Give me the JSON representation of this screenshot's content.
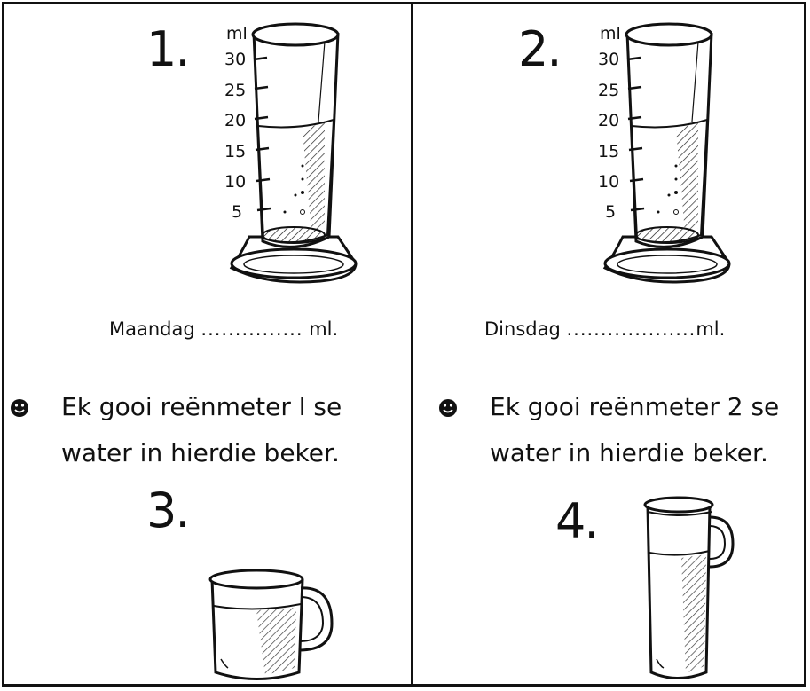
{
  "panels": [
    {
      "number": "1.",
      "unit_label": "ml",
      "scale_ticks": [
        "30",
        "25",
        "20",
        "15",
        "10",
        "5"
      ],
      "fill_prefix": "Maandag",
      "fill_dots": "...............",
      "fill_suffix": "ml.",
      "fill_level_ml": 20
    },
    {
      "number": "2.",
      "unit_label": "ml",
      "scale_ticks": [
        "30",
        "25",
        "20",
        "15",
        "10",
        "5"
      ],
      "fill_prefix": "Dinsdag",
      "fill_dots": "...................",
      "fill_suffix": "ml.",
      "fill_level_ml": 20
    }
  ],
  "instructions": [
    {
      "bullet_icon": "smiley-bullet-icon",
      "line1": "Ek gooi reënmeter  l  se",
      "line2": "water in hierdie beker."
    },
    {
      "bullet_icon": "smiley-bullet-icon",
      "line1": "Ek gooi reënmeter  2 se",
      "line2": "water in hierdie beker."
    }
  ],
  "containers": [
    {
      "number": "3.",
      "icon": "mug-icon"
    },
    {
      "number": "4.",
      "icon": "tall-jug-icon"
    }
  ],
  "colors": {
    "ink": "#111111",
    "paper": "#ffffff"
  }
}
